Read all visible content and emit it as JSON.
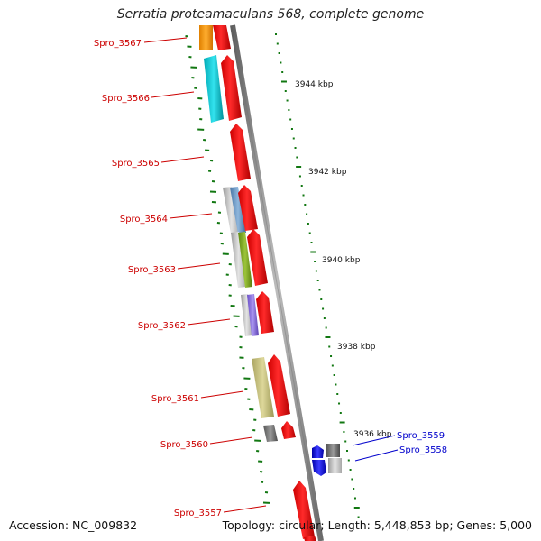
{
  "title": "Serratia proteamaculans 568, complete genome",
  "footer": {
    "accession": "Accession: NC_009832",
    "topology": "Topology: circular; Length: 5,448,853 bp; Genes: 5,000"
  },
  "colors": {
    "backbone": "#888888",
    "forward_gene": "#ee0000",
    "label_red": "#cc0000",
    "label_blue": "#0000cc",
    "gc_dots": "#117711",
    "scale_ticks": "#117711"
  },
  "genes": [
    {
      "id": "Spro_3567",
      "strand": "reverse"
    },
    {
      "id": "Spro_3566",
      "strand": "reverse"
    },
    {
      "id": "Spro_3565",
      "strand": "reverse"
    },
    {
      "id": "Spro_3564",
      "strand": "reverse"
    },
    {
      "id": "Spro_3563",
      "strand": "reverse"
    },
    {
      "id": "Spro_3562",
      "strand": "reverse"
    },
    {
      "id": "Spro_3561",
      "strand": "reverse"
    },
    {
      "id": "Spro_3560",
      "strand": "reverse"
    },
    {
      "id": "Spro_3559",
      "strand": "forward"
    },
    {
      "id": "Spro_3558",
      "strand": "forward"
    },
    {
      "id": "Spro_3557",
      "strand": "reverse"
    }
  ],
  "scale_labels": [
    "3944 kbp",
    "3942 kbp",
    "3940 kbp",
    "3938 kbp",
    "3936 kbp"
  ]
}
